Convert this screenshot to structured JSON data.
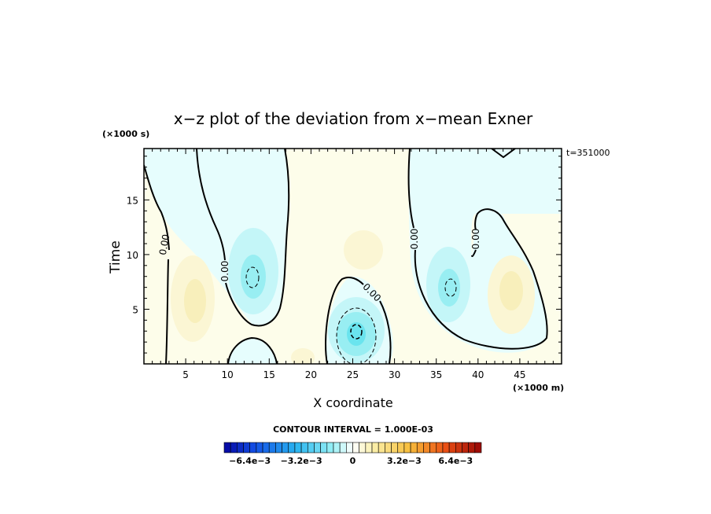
{
  "chart_data": {
    "type": "heatmap",
    "title": "x−z plot of the deviation from x−mean Exner",
    "xlabel": "X coordinate",
    "ylabel": "Time",
    "x_unit_label": "(×1000 m)",
    "y_unit_label": "(×1000 s)",
    "time_label": "t=351000",
    "xlim": [
      0,
      50
    ],
    "ylim": [
      0,
      19.7
    ],
    "x_ticks": [
      5,
      10,
      15,
      20,
      25,
      30,
      35,
      40,
      45
    ],
    "y_ticks": [
      5,
      10,
      15
    ],
    "contour_interval_label": "CONTOUR INTERVAL = 1.000E-03",
    "contour_labels": [
      "0.00",
      "0.00",
      "0.00",
      "0.00",
      "0.00"
    ],
    "colorbar": {
      "range": [
        -0.008,
        0.008
      ],
      "tick_labels": [
        "−6.4e−3",
        "−3.2e−3",
        "0",
        "3.2e−3",
        "6.4e−3"
      ],
      "tick_values": [
        -0.0064,
        -0.0032,
        0,
        0.0032,
        0.0064
      ]
    },
    "features": [
      {
        "kind": "negative",
        "x": 13,
        "t": 8,
        "peak": -0.0012
      },
      {
        "kind": "negative",
        "x": 25.3,
        "t": 3,
        "peak": -0.002
      },
      {
        "kind": "negative",
        "x": 37,
        "t": 7,
        "peak": -0.0011
      },
      {
        "kind": "positive",
        "x": 6.5,
        "t": 6,
        "peak": 0.0006
      },
      {
        "kind": "positive",
        "x": 25,
        "t": 11,
        "peak": 0.0004
      },
      {
        "kind": "positive",
        "x": 44,
        "t": 6,
        "peak": 0.0005
      }
    ]
  }
}
